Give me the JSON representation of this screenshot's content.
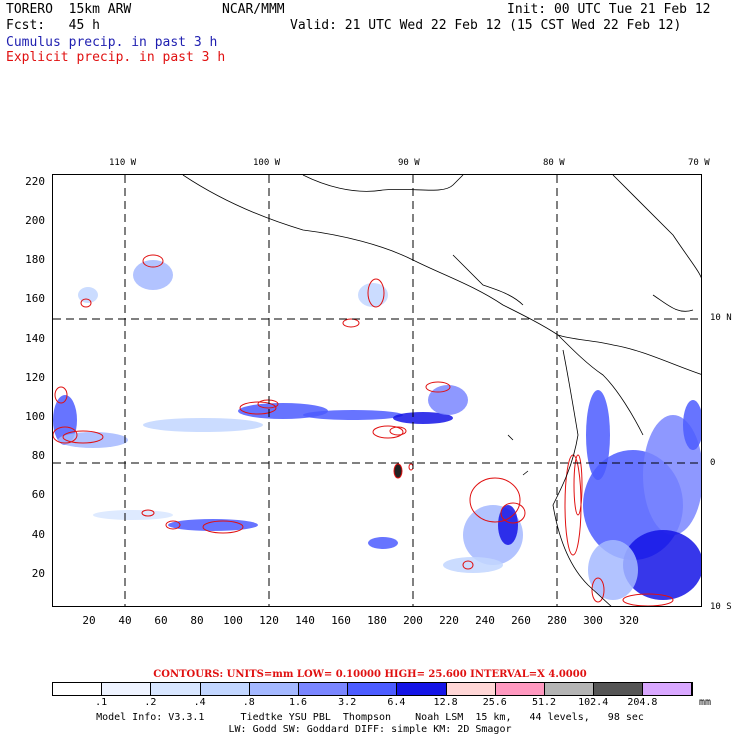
{
  "header": {
    "model": "TORERO  15km ARW",
    "center": "NCAR/MMM",
    "init": "Init: 00 UTC Tue 21 Feb 12",
    "fcst": "Fcst:   45 h",
    "valid": "Valid: 21 UTC Wed 22 Feb 12 (15 CST Wed 22 Feb 12)",
    "field1": "Cumulus precip. in past 3 h",
    "field2": "Explicit precip. in past 3 h"
  },
  "axes": {
    "left_ticks": [
      "220",
      "200",
      "180",
      "160",
      "140",
      "120",
      "100",
      "80",
      "60",
      "40",
      "20"
    ],
    "bottom_ticks": [
      "20",
      "40",
      "60",
      "80",
      "100",
      "120",
      "140",
      "160",
      "180",
      "200",
      "220",
      "240",
      "260",
      "280",
      "300",
      "320"
    ],
    "top_lon": [
      "110 W",
      "100 W",
      "90 W",
      "80 W",
      "70 W"
    ],
    "right_lat": [
      "10 N",
      "0",
      "10 S"
    ]
  },
  "contour_info": {
    "units": "CONTOURS:  UNITS=mm  LOW= 0.10000      HIGH=  25.600      INTERVAL=X  4.0000"
  },
  "colorbar": {
    "colors": [
      "#ffffff",
      "#eef3ff",
      "#d8e6ff",
      "#c2d6ff",
      "#a4b8ff",
      "#7a86ff",
      "#4c5cff",
      "#1414e6",
      "#ffd6d6",
      "#ff99c0",
      "#b4b4b4",
      "#555555",
      "#d9a8ff"
    ],
    "labels": [
      ".1",
      ".2",
      ".4",
      ".8",
      "1.6",
      "3.2",
      "6.4",
      "12.8",
      "25.6",
      "51.2",
      "102.4",
      "204.8"
    ],
    "unit": "mm"
  },
  "footer": {
    "line1": "Model Info: V3.3.1      Tiedtke YSU PBL  Thompson    Noah LSM  15 km,   44 levels,   98 sec",
    "line2": "LW: Godd SW: Goddard DIFF: simple KM: 2D Smagor"
  }
}
